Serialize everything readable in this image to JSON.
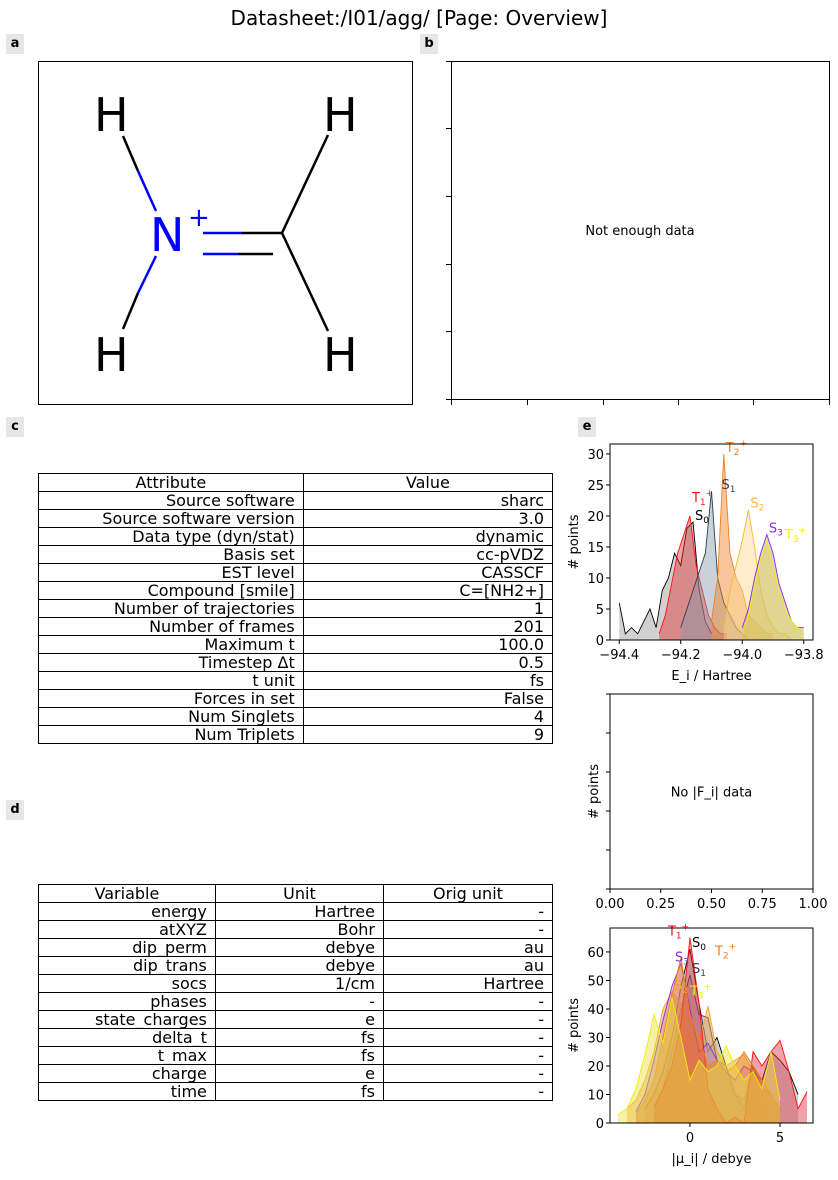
{
  "title": "Datasheet:/I01/agg/ [Page: Overview]",
  "panel_labels": {
    "a": "a",
    "b": "b",
    "c": "c",
    "d": "d",
    "e": "e"
  },
  "molecule": {
    "smile": "C=[NH2+]",
    "atoms": {
      "h": "H",
      "n": "N",
      "charge": "+"
    },
    "colors": {
      "n": "#0000ff",
      "bond": "#000000"
    }
  },
  "panel_b": {
    "message": "Not enough data"
  },
  "attributes_table": {
    "headers": [
      "Attribute",
      "Value"
    ],
    "rows": [
      [
        "Source software",
        "sharc"
      ],
      [
        "Source software version",
        "3.0"
      ],
      [
        "Data type (dyn/stat)",
        "dynamic"
      ],
      [
        "Basis set",
        "cc-pVDZ"
      ],
      [
        "EST level",
        "CASSCF"
      ],
      [
        "Compound [smile]",
        "C=[NH2+]"
      ],
      [
        "Number of trajectories",
        "1"
      ],
      [
        "Number of frames",
        "201"
      ],
      [
        "Maximum t",
        "100.0"
      ],
      [
        "Timestep Δt",
        "0.5"
      ],
      [
        "t unit",
        "fs"
      ],
      [
        "Forces in set",
        "False"
      ],
      [
        "Num Singlets",
        "4"
      ],
      [
        "Num Triplets",
        "9"
      ]
    ]
  },
  "variables_table": {
    "headers": [
      "Variable",
      "Unit",
      "Orig unit"
    ],
    "rows": [
      [
        "energy",
        "Hartree",
        "-"
      ],
      [
        "atXYZ",
        "Bohr",
        "-"
      ],
      [
        "dip_perm",
        "debye",
        "au"
      ],
      [
        "dip_trans",
        "debye",
        "au"
      ],
      [
        "socs",
        "1/cm",
        "Hartree"
      ],
      [
        "phases",
        "-",
        "-"
      ],
      [
        "state_charges",
        "e",
        "-"
      ],
      [
        "delta_t",
        "fs",
        "-"
      ],
      [
        "t_max",
        "fs",
        "-"
      ],
      [
        "charge",
        "e",
        "-"
      ],
      [
        "time",
        "fs",
        "-"
      ]
    ]
  },
  "chart_data": [
    {
      "type": "area",
      "id": "energy_hist",
      "xlabel": "E_i / Hartree",
      "ylabel": "# points",
      "xlim": [
        -94.43,
        -93.77
      ],
      "ylim": [
        0,
        31.6
      ],
      "xticks": [
        -94.4,
        -94.2,
        -94.0,
        -93.8
      ],
      "xtick_labels": [
        "−94.4",
        "−94.2",
        "−94.0",
        "−93.8"
      ],
      "yticks": [
        0,
        5,
        10,
        15,
        20,
        25,
        30
      ],
      "grid": false,
      "series": [
        {
          "name": "S0",
          "sub": "0",
          "sup": "",
          "color": "#000000",
          "fill": "#999999",
          "x0": -94.4,
          "dx": 0.02,
          "values": [
            6,
            1,
            2,
            1,
            3,
            5,
            2,
            8,
            10,
            14,
            12,
            18,
            19,
            8,
            3,
            1
          ]
        },
        {
          "name": "T1",
          "sub": "1",
          "sup": "+",
          "color": "#ff1010",
          "fill": "#e03030",
          "x0": -94.27,
          "dx": 0.02,
          "values": [
            1,
            4,
            9,
            14,
            17,
            20,
            12,
            8,
            4,
            2,
            1,
            1
          ]
        },
        {
          "name": "S1",
          "sub": "1",
          "sup": "",
          "color": "#2f3f4f",
          "fill": "#8899aa",
          "x0": -94.2,
          "dx": 0.02,
          "values": [
            2,
            5,
            8,
            11,
            14,
            24,
            10,
            6,
            4,
            2,
            1,
            0
          ]
        },
        {
          "name": "T2",
          "sub": "2",
          "sup": "+",
          "color": "#f08020",
          "fill": "#f08020",
          "x0": -94.1,
          "dx": 0.02,
          "values": [
            3,
            10,
            30,
            14,
            10,
            8,
            4,
            3,
            2,
            1,
            1
          ]
        },
        {
          "name": "S2",
          "sub": "2",
          "sup": "",
          "color": "#f8b830",
          "fill": "#fad890",
          "x0": -94.06,
          "dx": 0.02,
          "values": [
            2,
            8,
            12,
            16,
            21,
            15,
            8,
            4,
            2,
            1,
            1,
            0
          ]
        },
        {
          "name": "S3",
          "sub": "3",
          "sup": "",
          "color": "#8a2be2",
          "fill": "#b090e0",
          "x0": -94.0,
          "dx": 0.02,
          "values": [
            2,
            5,
            10,
            14,
            17,
            14,
            9,
            6,
            3,
            2,
            2
          ]
        },
        {
          "name": "T3",
          "sub": "3",
          "sup": "+",
          "color": "#f0f000",
          "fill": "#e8e020",
          "x0": -94.0,
          "dx": 0.02,
          "values": [
            1,
            4,
            9,
            13,
            16,
            12,
            8,
            5,
            3,
            2,
            1
          ]
        }
      ]
    },
    {
      "type": "empty",
      "id": "force_hist",
      "message": "No |F_i| data",
      "ylabel": "# points",
      "xlim": [
        0,
        1
      ],
      "xticks": [
        0,
        0.25,
        0.5,
        0.75,
        1.0
      ],
      "xtick_labels": [
        "0.00",
        "0.25",
        "0.50",
        "0.75",
        "1.00"
      ]
    },
    {
      "type": "area",
      "id": "dipole_hist",
      "xlabel": "|μ_i| / debye",
      "ylabel": "# points",
      "xlim": [
        -4.44,
        6.83
      ],
      "ylim": [
        0,
        68.4
      ],
      "xticks": [
        0,
        5
      ],
      "xtick_labels": [
        "0",
        "5"
      ],
      "yticks": [
        0,
        10,
        20,
        30,
        40,
        50,
        60
      ],
      "grid": false,
      "series": [
        {
          "name": "S0",
          "sub": "0",
          "sup": "",
          "color": "#000000",
          "fill": "#999999",
          "x0": -2.5,
          "dx": 0.5,
          "values": [
            5,
            10,
            18,
            30,
            48,
            61,
            42,
            25,
            30,
            20,
            10,
            5,
            20,
            15,
            25,
            22,
            18,
            10
          ]
        },
        {
          "name": "S1",
          "sub": "1",
          "sup": "",
          "color": "#2f3f4f",
          "fill": "#8899aa",
          "x0": -2.0,
          "dx": 0.5,
          "values": [
            6,
            12,
            25,
            40,
            52,
            38,
            37,
            22,
            20,
            10,
            8,
            20,
            12,
            10,
            5
          ]
        },
        {
          "name": "S2",
          "sub": "2",
          "sup": "",
          "color": "#f8a020",
          "fill": "#f0a040",
          "x0": -3.5,
          "dx": 0.5,
          "values": [
            5,
            8,
            15,
            25,
            40,
            46,
            42,
            30,
            28,
            41,
            25,
            20,
            22,
            24,
            18,
            8,
            5
          ]
        },
        {
          "name": "S3",
          "sub": "3",
          "sup": "",
          "color": "#8a2be2",
          "fill": "#c080c0",
          "x0": -3.0,
          "dx": 0.5,
          "values": [
            4,
            10,
            22,
            36,
            48,
            56,
            40,
            25,
            28,
            22,
            18,
            15,
            20,
            18,
            15,
            10,
            5
          ]
        },
        {
          "name": "T1",
          "sub": "1",
          "sup": "+",
          "color": "#ff1010",
          "fill": "#e03040",
          "x0": -2.0,
          "dx": 0.5,
          "values": [
            5,
            12,
            20,
            35,
            65,
            42,
            12,
            5,
            0,
            2,
            0,
            25,
            20,
            25,
            29,
            18,
            5,
            11
          ]
        },
        {
          "name": "T2",
          "sub": "2",
          "sup": "+",
          "color": "#f08020",
          "fill": "#f08020",
          "x0": -3.0,
          "dx": 0.5,
          "values": [
            3,
            8,
            15,
            30,
            45,
            58,
            38,
            30,
            20,
            22,
            18,
            20,
            25,
            20,
            15,
            10,
            5
          ]
        },
        {
          "name": "T3",
          "sub": "3",
          "sup": "+",
          "color": "#f0f000",
          "fill": "#e8e040",
          "x0": -4.0,
          "dx": 0.5,
          "values": [
            3,
            5,
            12,
            24,
            38,
            28,
            44,
            30,
            15,
            22,
            18,
            20,
            27,
            20,
            15,
            18,
            12,
            25,
            8
          ]
        }
      ]
    }
  ]
}
